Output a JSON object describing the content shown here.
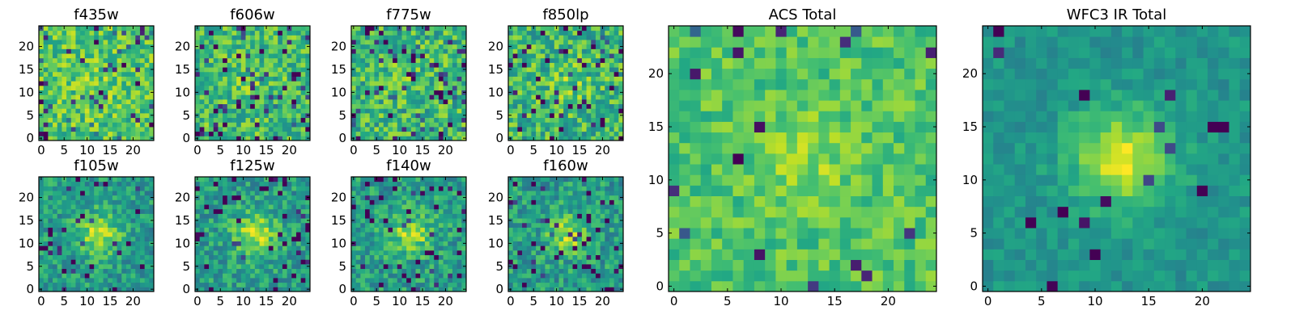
{
  "chart_data": [
    {
      "type": "heatmap",
      "title": "f435w",
      "xticks": [
        "0",
        "5",
        "10",
        "15",
        "20"
      ],
      "yticks": [
        "0",
        "5",
        "10",
        "15",
        "20"
      ],
      "xlim": [
        0,
        25
      ],
      "ylim": [
        0,
        25
      ],
      "colormap": "viridis",
      "grid": "25x25",
      "model": {
        "seed": 11,
        "peak": 0.05,
        "noise": 0.2,
        "dark": 0.08,
        "bias": 0.72,
        "sigma": 4.0,
        "lo": 0.0,
        "hi": 1.0
      }
    },
    {
      "type": "heatmap",
      "title": "f606w",
      "xticks": [
        "0",
        "5",
        "10",
        "15",
        "20"
      ],
      "yticks": [
        "0",
        "5",
        "10",
        "15",
        "20"
      ],
      "xlim": [
        0,
        25
      ],
      "ylim": [
        0,
        25
      ],
      "colormap": "viridis",
      "grid": "25x25",
      "model": {
        "seed": 23,
        "peak": 0.05,
        "noise": 0.2,
        "dark": 0.09,
        "bias": 0.68,
        "sigma": 4.0,
        "lo": 0.0,
        "hi": 1.0
      }
    },
    {
      "type": "heatmap",
      "title": "f775w",
      "xticks": [
        "0",
        "5",
        "10",
        "15",
        "20"
      ],
      "yticks": [
        "0",
        "5",
        "10",
        "15",
        "20"
      ],
      "xlim": [
        0,
        25
      ],
      "ylim": [
        0,
        25
      ],
      "colormap": "viridis",
      "grid": "25x25",
      "model": {
        "seed": 37,
        "peak": 0.05,
        "noise": 0.22,
        "dark": 0.1,
        "bias": 0.66,
        "sigma": 4.0,
        "lo": 0.0,
        "hi": 1.0
      }
    },
    {
      "type": "heatmap",
      "title": "f850lp",
      "xticks": [
        "0",
        "5",
        "10",
        "15",
        "20"
      ],
      "yticks": [
        "0",
        "5",
        "10",
        "15",
        "20"
      ],
      "xlim": [
        0,
        25
      ],
      "ylim": [
        0,
        25
      ],
      "colormap": "viridis",
      "grid": "25x25",
      "model": {
        "seed": 41,
        "peak": 0.1,
        "noise": 0.22,
        "dark": 0.1,
        "bias": 0.65,
        "sigma": 4.0,
        "lo": 0.0,
        "hi": 1.0
      }
    },
    {
      "type": "heatmap",
      "title": "f105w",
      "xticks": [
        "0",
        "5",
        "10",
        "15",
        "20"
      ],
      "yticks": [
        "0",
        "5",
        "10",
        "15",
        "20"
      ],
      "xlim": [
        0,
        25
      ],
      "ylim": [
        0,
        25
      ],
      "colormap": "viridis",
      "grid": "25x25",
      "model": {
        "seed": 53,
        "peak": 0.35,
        "noise": 0.17,
        "dark": 0.07,
        "bias": 0.55,
        "sigma": 3.2,
        "lo": 0.0,
        "hi": 1.0
      }
    },
    {
      "type": "heatmap",
      "title": "f125w",
      "xticks": [
        "0",
        "5",
        "10",
        "15",
        "20"
      ],
      "yticks": [
        "0",
        "5",
        "10",
        "15",
        "20"
      ],
      "xlim": [
        0,
        25
      ],
      "ylim": [
        0,
        25
      ],
      "colormap": "viridis",
      "grid": "25x25",
      "model": {
        "seed": 67,
        "peak": 0.33,
        "noise": 0.17,
        "dark": 0.06,
        "bias": 0.55,
        "sigma": 3.4,
        "lo": 0.0,
        "hi": 1.0
      }
    },
    {
      "type": "heatmap",
      "title": "f140w",
      "xticks": [
        "0",
        "5",
        "10",
        "15",
        "20"
      ],
      "yticks": [
        "0",
        "5",
        "10",
        "15",
        "20"
      ],
      "xlim": [
        0,
        25
      ],
      "ylim": [
        0,
        25
      ],
      "colormap": "viridis",
      "grid": "25x25",
      "model": {
        "seed": 71,
        "peak": 0.3,
        "noise": 0.18,
        "dark": 0.08,
        "bias": 0.55,
        "sigma": 3.4,
        "lo": 0.0,
        "hi": 1.0
      }
    },
    {
      "type": "heatmap",
      "title": "f160w",
      "xticks": [
        "0",
        "5",
        "10",
        "15",
        "20"
      ],
      "yticks": [
        "0",
        "5",
        "10",
        "15",
        "20"
      ],
      "xlim": [
        0,
        25
      ],
      "ylim": [
        0,
        25
      ],
      "colormap": "viridis",
      "grid": "25x25",
      "model": {
        "seed": 83,
        "peak": 0.32,
        "noise": 0.18,
        "dark": 0.08,
        "bias": 0.55,
        "sigma": 3.0,
        "lo": 0.0,
        "hi": 1.0
      }
    },
    {
      "type": "heatmap",
      "title": "ACS Total",
      "xticks": [
        "0",
        "5",
        "10",
        "15",
        "20"
      ],
      "yticks": [
        "0",
        "5",
        "10",
        "15",
        "20"
      ],
      "xlim": [
        0,
        25
      ],
      "ylim": [
        0,
        25
      ],
      "colormap": "viridis",
      "grid": "25x25",
      "model": {
        "seed": 97,
        "peak": 0.12,
        "noise": 0.13,
        "dark": 0.035,
        "bias": 0.72,
        "sigma": 3.0,
        "lo": 0.0,
        "hi": 1.0
      }
    },
    {
      "type": "heatmap",
      "title": "WFC3 IR Total",
      "xticks": [
        "0",
        "5",
        "10",
        "15",
        "20"
      ],
      "yticks": [
        "0",
        "5",
        "10",
        "15",
        "20"
      ],
      "xlim": [
        0,
        25
      ],
      "ylim": [
        0,
        25
      ],
      "colormap": "viridis",
      "grid": "25x25",
      "model": {
        "seed": 101,
        "peak": 0.42,
        "noise": 0.09,
        "dark": 0.02,
        "bias": 0.52,
        "sigma": 3.2,
        "lo": 0.0,
        "hi": 1.0
      }
    }
  ]
}
